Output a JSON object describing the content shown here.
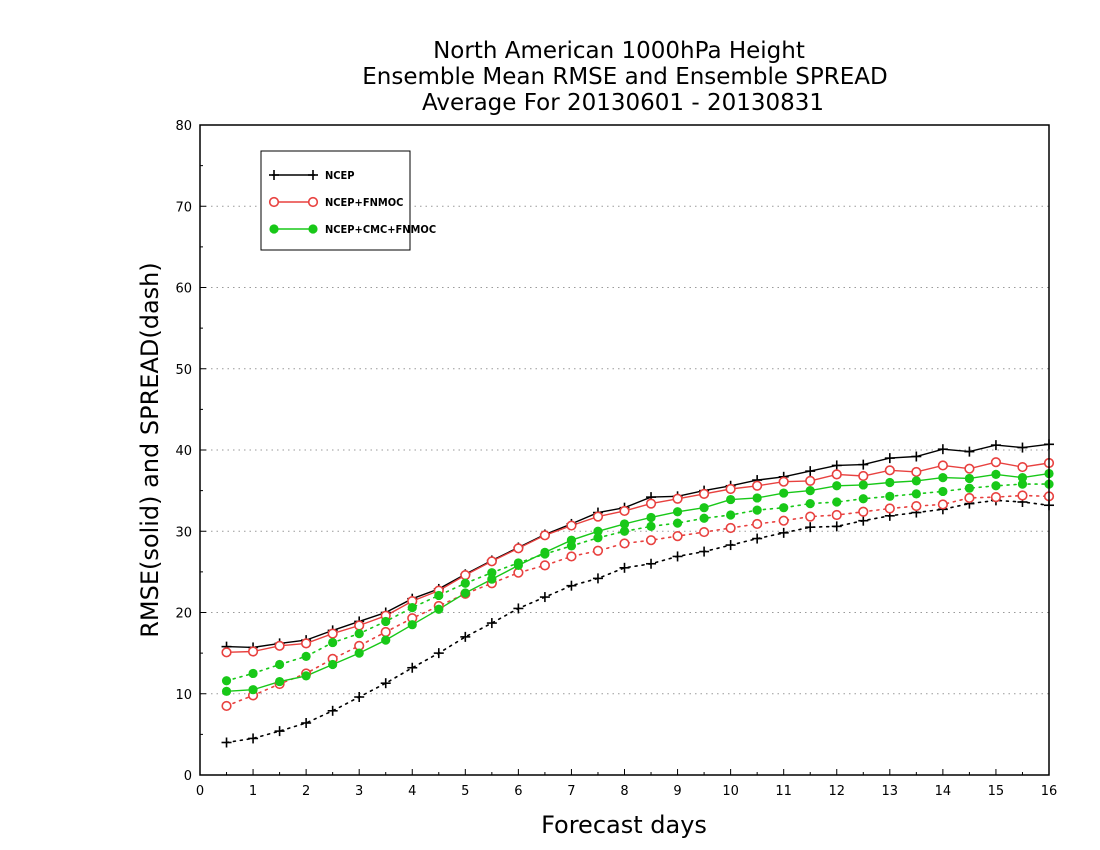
{
  "chart_data": {
    "type": "line",
    "title_lines": [
      "North American 1000hPa Height",
      "Ensemble Mean RMSE and Ensemble SPREAD",
      "Average For 20130601 - 20130831"
    ],
    "xlabel": "Forecast days",
    "ylabel": "RMSE(solid) and SPREAD(dash)",
    "xlim": [
      0,
      16
    ],
    "ylim": [
      0,
      80
    ],
    "x_ticks": [
      0,
      1,
      2,
      3,
      4,
      5,
      6,
      7,
      8,
      9,
      10,
      11,
      12,
      13,
      14,
      15,
      16
    ],
    "y_ticks": [
      0,
      10,
      20,
      30,
      40,
      50,
      60,
      70,
      80
    ],
    "grid": "horizontal dotted",
    "legend_position": "top-left",
    "x": [
      0.5,
      1,
      1.5,
      2,
      2.5,
      3,
      3.5,
      4,
      4.5,
      5,
      5.5,
      6,
      6.5,
      7,
      7.5,
      8,
      8.5,
      9,
      9.5,
      10,
      10.5,
      11,
      11.5,
      12,
      12.5,
      13,
      13.5,
      14,
      14.5,
      15,
      15.5,
      16
    ],
    "series": [
      {
        "name": "NCEP",
        "color": "#000000",
        "marker": "plus",
        "rmse": [
          15.8,
          15.7,
          16.2,
          16.6,
          17.8,
          18.9,
          20.0,
          21.7,
          22.9,
          24.7,
          26.4,
          28.0,
          29.6,
          30.9,
          32.3,
          32.9,
          34.2,
          34.3,
          35.0,
          35.6,
          36.3,
          36.7,
          37.4,
          38.1,
          38.2,
          39.0,
          39.2,
          40.1,
          39.8,
          40.6,
          40.3,
          40.7
        ],
        "spread": [
          4.0,
          4.5,
          5.4,
          6.4,
          7.9,
          9.6,
          11.3,
          13.2,
          15.0,
          17.0,
          18.7,
          20.5,
          21.9,
          23.3,
          24.2,
          25.5,
          26.0,
          26.9,
          27.5,
          28.3,
          29.1,
          29.8,
          30.5,
          30.6,
          31.3,
          31.9,
          32.3,
          32.7,
          33.4,
          33.8,
          33.6,
          33.2
        ]
      },
      {
        "name": "NCEP+FNMOC",
        "color": "#e8413f",
        "marker": "open-circle",
        "rmse": [
          15.1,
          15.2,
          15.9,
          16.2,
          17.4,
          18.4,
          19.6,
          21.4,
          22.7,
          24.6,
          26.3,
          27.9,
          29.5,
          30.7,
          31.8,
          32.5,
          33.4,
          34.0,
          34.6,
          35.2,
          35.6,
          36.1,
          36.2,
          37.0,
          36.8,
          37.5,
          37.3,
          38.1,
          37.7,
          38.5,
          37.9,
          38.4
        ],
        "spread": [
          8.5,
          9.8,
          11.2,
          12.5,
          14.3,
          15.9,
          17.6,
          19.3,
          20.8,
          22.3,
          23.6,
          24.9,
          25.8,
          26.9,
          27.6,
          28.5,
          28.9,
          29.4,
          29.9,
          30.4,
          30.9,
          31.3,
          31.8,
          32.0,
          32.4,
          32.8,
          33.1,
          33.3,
          34.1,
          34.2,
          34.4,
          34.3
        ]
      },
      {
        "name": "NCEP+CMC+FNMOC",
        "color": "#18c818",
        "marker": "filled-circle",
        "rmse": [
          10.3,
          10.5,
          11.5,
          12.2,
          13.6,
          15.0,
          16.6,
          18.5,
          20.4,
          22.4,
          24.1,
          25.8,
          27.4,
          28.9,
          30.0,
          30.9,
          31.7,
          32.4,
          32.9,
          33.9,
          34.1,
          34.7,
          35.0,
          35.6,
          35.7,
          36.0,
          36.2,
          36.6,
          36.5,
          37.0,
          36.6,
          37.1
        ],
        "spread": [
          11.6,
          12.5,
          13.6,
          14.6,
          16.3,
          17.4,
          18.9,
          20.6,
          22.1,
          23.6,
          24.9,
          26.1,
          27.2,
          28.2,
          29.2,
          30.0,
          30.6,
          31.0,
          31.6,
          32.0,
          32.6,
          32.9,
          33.4,
          33.6,
          34.0,
          34.3,
          34.6,
          34.9,
          35.3,
          35.6,
          35.8,
          35.8
        ]
      }
    ]
  }
}
